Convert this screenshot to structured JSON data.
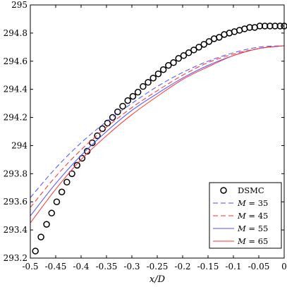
{
  "chart_data": {
    "type": "line",
    "title": "",
    "xlabel": "x/D",
    "ylabel": "",
    "xlim": [
      -0.5,
      0
    ],
    "ylim": [
      293.2,
      295
    ],
    "xticks": [
      -0.5,
      -0.45,
      -0.4,
      -0.35,
      -0.3,
      -0.25,
      -0.2,
      -0.15,
      -0.1,
      -0.05,
      0
    ],
    "xtick_labels": [
      "-0.5",
      "-0.45",
      "-0.4",
      "-0.35",
      "-0.3",
      "-0.25",
      "-0.2",
      "-0.15",
      "-0.1",
      "-0.05",
      "0"
    ],
    "yticks": [
      293.2,
      293.4,
      293.6,
      293.8,
      294,
      294.2,
      294.4,
      294.6,
      294.8,
      295
    ],
    "ytick_labels": [
      "293.2",
      "293.4",
      "293.6",
      "293.8",
      "294",
      "294.2",
      "294.4",
      "294.6",
      "294.8",
      "295"
    ],
    "grid": false,
    "legend_position": "bottom-right",
    "series": [
      {
        "name": "DSMC",
        "legend_parts": [
          {
            "text": "DSMC",
            "italic": false
          }
        ],
        "style": "markers",
        "marker": "circle",
        "color": "#000000",
        "x": [
          -0.49,
          -0.479,
          -0.468,
          -0.458,
          -0.448,
          -0.438,
          -0.428,
          -0.418,
          -0.408,
          -0.398,
          -0.388,
          -0.378,
          -0.368,
          -0.358,
          -0.348,
          -0.338,
          -0.328,
          -0.318,
          -0.308,
          -0.298,
          -0.288,
          -0.278,
          -0.268,
          -0.258,
          -0.248,
          -0.238,
          -0.228,
          -0.218,
          -0.208,
          -0.198,
          -0.188,
          -0.178,
          -0.168,
          -0.158,
          -0.148,
          -0.138,
          -0.128,
          -0.118,
          -0.108,
          -0.098,
          -0.088,
          -0.078,
          -0.068,
          -0.058,
          -0.048,
          -0.038,
          -0.028,
          -0.018,
          -0.008,
          0.0
        ],
        "y": [
          293.25,
          293.35,
          293.44,
          293.52,
          293.6,
          293.67,
          293.74,
          293.8,
          293.86,
          293.91,
          293.96,
          294.02,
          294.07,
          294.12,
          294.16,
          294.2,
          294.24,
          294.28,
          294.32,
          294.35,
          294.38,
          294.42,
          294.45,
          294.48,
          294.51,
          294.54,
          294.57,
          294.59,
          294.62,
          294.64,
          294.66,
          294.68,
          294.7,
          294.72,
          294.74,
          294.76,
          294.77,
          294.79,
          294.8,
          294.81,
          294.82,
          294.83,
          294.84,
          294.84,
          294.85,
          294.85,
          294.85,
          294.85,
          294.85,
          294.85
        ]
      },
      {
        "name": "M = 35",
        "legend_parts": [
          {
            "text": "M",
            "italic": true
          },
          {
            "text": " = 35",
            "italic": false
          }
        ],
        "style": "dashed",
        "color": "#4d4dff",
        "x": [
          -0.5,
          -0.45,
          -0.4,
          -0.35,
          -0.3,
          -0.25,
          -0.2,
          -0.15,
          -0.1,
          -0.05,
          0
        ],
        "y": [
          293.63,
          293.84,
          294.02,
          294.17,
          294.3,
          294.42,
          294.52,
          294.6,
          294.66,
          294.7,
          294.71
        ]
      },
      {
        "name": "M = 45",
        "legend_parts": [
          {
            "text": "M",
            "italic": true
          },
          {
            "text": " = 45",
            "italic": false
          }
        ],
        "style": "dashed",
        "color": "#ff2b2b",
        "x": [
          -0.5,
          -0.45,
          -0.4,
          -0.35,
          -0.3,
          -0.25,
          -0.2,
          -0.15,
          -0.1,
          -0.05,
          0
        ],
        "y": [
          293.56,
          293.78,
          293.97,
          294.13,
          294.27,
          294.39,
          294.5,
          294.59,
          294.65,
          294.69,
          294.71
        ]
      },
      {
        "name": "M = 55",
        "legend_parts": [
          {
            "text": "M",
            "italic": true
          },
          {
            "text": " = 55",
            "italic": false
          }
        ],
        "style": "solid",
        "color": "#5050ff",
        "x": [
          -0.5,
          -0.45,
          -0.4,
          -0.35,
          -0.3,
          -0.25,
          -0.2,
          -0.15,
          -0.1,
          -0.05,
          0
        ],
        "y": [
          293.5,
          293.73,
          293.93,
          294.1,
          294.25,
          294.37,
          294.48,
          294.57,
          294.64,
          294.69,
          294.71
        ]
      },
      {
        "name": "M = 65",
        "legend_parts": [
          {
            "text": "M",
            "italic": true
          },
          {
            "text": " = 65",
            "italic": false
          }
        ],
        "style": "solid",
        "color": "#ff3333",
        "x": [
          -0.5,
          -0.45,
          -0.4,
          -0.35,
          -0.3,
          -0.25,
          -0.2,
          -0.15,
          -0.1,
          -0.05,
          0
        ],
        "y": [
          293.45,
          293.69,
          293.9,
          294.07,
          294.22,
          294.35,
          294.47,
          294.56,
          294.64,
          294.69,
          294.71
        ]
      }
    ]
  }
}
